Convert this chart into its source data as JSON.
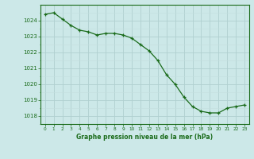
{
  "x": [
    0,
    1,
    2,
    3,
    4,
    5,
    6,
    7,
    8,
    9,
    10,
    11,
    12,
    13,
    14,
    15,
    16,
    17,
    18,
    19,
    20,
    21,
    22,
    23
  ],
  "y": [
    1024.4,
    1024.5,
    1024.1,
    1023.7,
    1023.4,
    1023.3,
    1023.1,
    1023.2,
    1023.2,
    1023.1,
    1022.9,
    1022.5,
    1022.1,
    1021.5,
    1020.6,
    1020.0,
    1019.2,
    1018.6,
    1018.3,
    1018.2,
    1018.2,
    1018.5,
    1018.6,
    1018.7
  ],
  "line_color": "#1a6b1a",
  "marker": "+",
  "bg_color": "#cce8e8",
  "grid_color": "#b0d0d0",
  "grid_minor_color": "#c4dede",
  "xlabel": "Graphe pression niveau de la mer (hPa)",
  "xlabel_color": "#1a6b1a",
  "tick_color": "#1a6b1a",
  "axis_color": "#1a6b1a",
  "ylim": [
    1017.5,
    1025.0
  ],
  "xlim": [
    -0.5,
    23.5
  ],
  "yticks": [
    1018,
    1019,
    1020,
    1021,
    1022,
    1023,
    1024
  ],
  "xticks": [
    0,
    1,
    2,
    3,
    4,
    5,
    6,
    7,
    8,
    9,
    10,
    11,
    12,
    13,
    14,
    15,
    16,
    17,
    18,
    19,
    20,
    21,
    22,
    23
  ],
  "figsize": [
    3.2,
    2.0
  ],
  "dpi": 100
}
